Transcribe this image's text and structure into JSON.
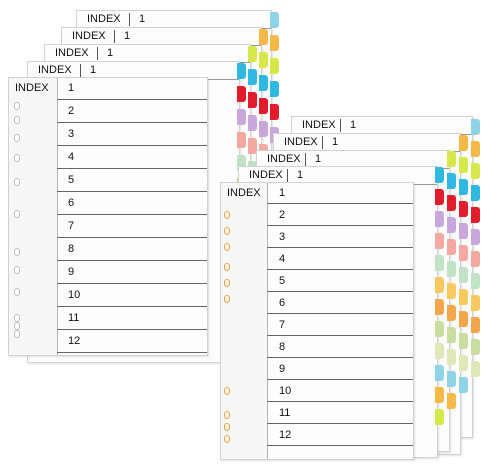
{
  "index_label": "INDEX",
  "header_number": "1",
  "tab_numbers": [
    "1",
    "2",
    "3",
    "4",
    "5",
    "6",
    "7",
    "8",
    "9",
    "10",
    "11",
    "12"
  ],
  "tab_colors": [
    "#8fd3e6",
    "#f5b94a",
    "#d6e84a",
    "#2fb8e0",
    "#e21c2a",
    "#c9a7dd",
    "#f4a9a0",
    "#bfe3c4",
    "#f7c95f",
    "#f3a64c",
    "#c8dfa0",
    "#dfe9b8"
  ]
}
